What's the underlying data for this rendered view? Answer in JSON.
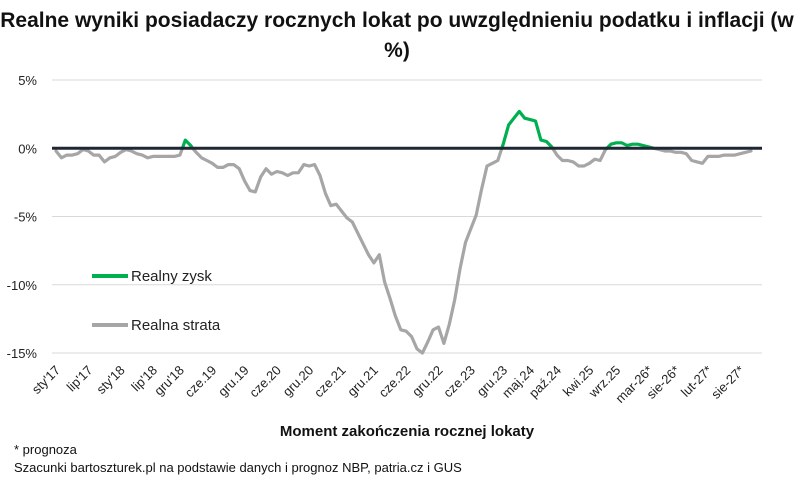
{
  "chart_data": {
    "type": "line",
    "title": "Realne wyniki posiadaczy rocznych lokat po uwzględnieniu podatku i inflacji (w %)",
    "xlabel": "Moment zakończenia rocznej lokaty",
    "ylabel": "",
    "ylim": [
      -15,
      5
    ],
    "yticks": [
      5,
      0,
      -5,
      -10,
      -15
    ],
    "ytick_labels": [
      "5%",
      "0%",
      "-5%",
      "-10%",
      "-15%"
    ],
    "grid": true,
    "legend_position": "left-center",
    "colors": {
      "gain": "#00b050",
      "loss": "#a6a6a6",
      "zero_line": "#1f2733",
      "grid": "#d9d9d9"
    },
    "x_tick_labels": [
      "sty'17",
      "lip'17",
      "sty'18",
      "lip'18",
      "gru'18",
      "cze.19",
      "gru.19",
      "cze.20",
      "gru.20",
      "cze.21",
      "gru.21",
      "cze.22",
      "gru.22",
      "cze.23",
      "gru.23",
      "maj.24",
      "paź.24",
      "kwi.25",
      "wrz.25",
      "mar-26*",
      "sie-26*",
      "lut-27*",
      "sie-27*"
    ],
    "x_tick_positions": [
      "2017-01",
      "2017-07",
      "2018-01",
      "2018-07",
      "2018-12",
      "2019-06",
      "2019-12",
      "2020-06",
      "2020-12",
      "2021-06",
      "2021-12",
      "2022-06",
      "2022-12",
      "2023-06",
      "2023-12",
      "2024-05",
      "2024-10",
      "2025-04",
      "2025-09",
      "2026-03",
      "2026-08",
      "2027-02",
      "2027-08"
    ],
    "x_start": "2017-01",
    "series": [
      {
        "name": "Realny zysk",
        "color": "#00b050",
        "role": "gain"
      },
      {
        "name": "Realna strata",
        "color": "#a6a6a6",
        "role": "loss"
      }
    ],
    "x": [
      "2017-01",
      "2017-02",
      "2017-03",
      "2017-04",
      "2017-05",
      "2017-06",
      "2017-07",
      "2017-08",
      "2017-09",
      "2017-10",
      "2017-11",
      "2017-12",
      "2018-01",
      "2018-02",
      "2018-03",
      "2018-04",
      "2018-05",
      "2018-06",
      "2018-07",
      "2018-08",
      "2018-09",
      "2018-10",
      "2018-11",
      "2018-12",
      "2019-01",
      "2019-02",
      "2019-03",
      "2019-04",
      "2019-05",
      "2019-06",
      "2019-07",
      "2019-08",
      "2019-09",
      "2019-10",
      "2019-11",
      "2019-12",
      "2020-01",
      "2020-02",
      "2020-03",
      "2020-04",
      "2020-05",
      "2020-06",
      "2020-07",
      "2020-08",
      "2020-09",
      "2020-10",
      "2020-11",
      "2020-12",
      "2021-01",
      "2021-02",
      "2021-03",
      "2021-04",
      "2021-05",
      "2021-06",
      "2021-07",
      "2021-08",
      "2021-09",
      "2021-10",
      "2021-11",
      "2021-12",
      "2022-01",
      "2022-02",
      "2022-03",
      "2022-04",
      "2022-05",
      "2022-06",
      "2022-07",
      "2022-08",
      "2022-09",
      "2022-10",
      "2022-11",
      "2022-12",
      "2023-01",
      "2023-02",
      "2023-03",
      "2023-04",
      "2023-05",
      "2023-06",
      "2023-07",
      "2023-08",
      "2023-09",
      "2023-10",
      "2023-11",
      "2023-12",
      "2024-01",
      "2024-02",
      "2024-03",
      "2024-04",
      "2024-05",
      "2024-06",
      "2024-07",
      "2024-08",
      "2024-09",
      "2024-10",
      "2024-11",
      "2024-12",
      "2025-01",
      "2025-02",
      "2025-03",
      "2025-04",
      "2025-05",
      "2025-06",
      "2025-07",
      "2025-08",
      "2025-09",
      "2025-10",
      "2025-11",
      "2025-12",
      "2026-01",
      "2026-02",
      "2026-03",
      "2026-04",
      "2026-05",
      "2026-06",
      "2026-07",
      "2026-08",
      "2026-09",
      "2026-10",
      "2026-11",
      "2026-12",
      "2027-01",
      "2027-02",
      "2027-03",
      "2027-04",
      "2027-05",
      "2027-06",
      "2027-07",
      "2027-08",
      "2027-09",
      "2027-10"
    ],
    "values": [
      -0.2,
      -0.7,
      -0.5,
      -0.5,
      -0.4,
      -0.1,
      -0.2,
      -0.5,
      -0.5,
      -1.0,
      -0.7,
      -0.6,
      -0.3,
      -0.1,
      -0.2,
      -0.4,
      -0.5,
      -0.7,
      -0.6,
      -0.6,
      -0.6,
      -0.6,
      -0.6,
      -0.5,
      0.6,
      0.2,
      -0.3,
      -0.7,
      -0.9,
      -1.1,
      -1.4,
      -1.4,
      -1.2,
      -1.2,
      -1.5,
      -2.4,
      -3.1,
      -3.2,
      -2.1,
      -1.5,
      -1.9,
      -1.7,
      -1.8,
      -2.0,
      -1.8,
      -1.8,
      -1.2,
      -1.3,
      -1.2,
      -2.0,
      -3.3,
      -4.2,
      -4.1,
      -4.6,
      -5.1,
      -5.4,
      -6.2,
      -7.0,
      -7.8,
      -8.4,
      -7.8,
      -9.8,
      -11.0,
      -12.3,
      -13.3,
      -13.4,
      -13.8,
      -14.7,
      -15.0,
      -14.2,
      -13.3,
      -13.1,
      -14.3,
      -12.9,
      -11.1,
      -8.8,
      -6.9,
      -5.9,
      -4.9,
      -3.0,
      -1.3,
      -1.1,
      -0.9,
      0.3,
      1.7,
      2.2,
      2.7,
      2.2,
      2.1,
      2.0,
      0.6,
      0.5,
      0.1,
      -0.5,
      -0.9,
      -0.9,
      -1.0,
      -1.3,
      -1.3,
      -1.1,
      -0.8,
      -0.9,
      -0.1,
      0.3,
      0.4,
      0.4,
      0.2,
      0.3,
      0.3,
      0.2,
      0.1,
      0.0,
      -0.1,
      -0.2,
      -0.2,
      -0.3,
      -0.3,
      -0.4,
      -0.9,
      -1.0,
      -1.1,
      -0.6,
      -0.6,
      -0.6,
      -0.5,
      -0.5,
      -0.5,
      -0.4,
      -0.3,
      -0.2
    ]
  },
  "legend": {
    "gain_label": "Realny zysk",
    "loss_label": "Realna strata"
  },
  "footnote": "* prognoza",
  "source": "Szacunki bartoszturek.pl na podstawie danych i prognoz NBP,  patria.cz i GUS"
}
